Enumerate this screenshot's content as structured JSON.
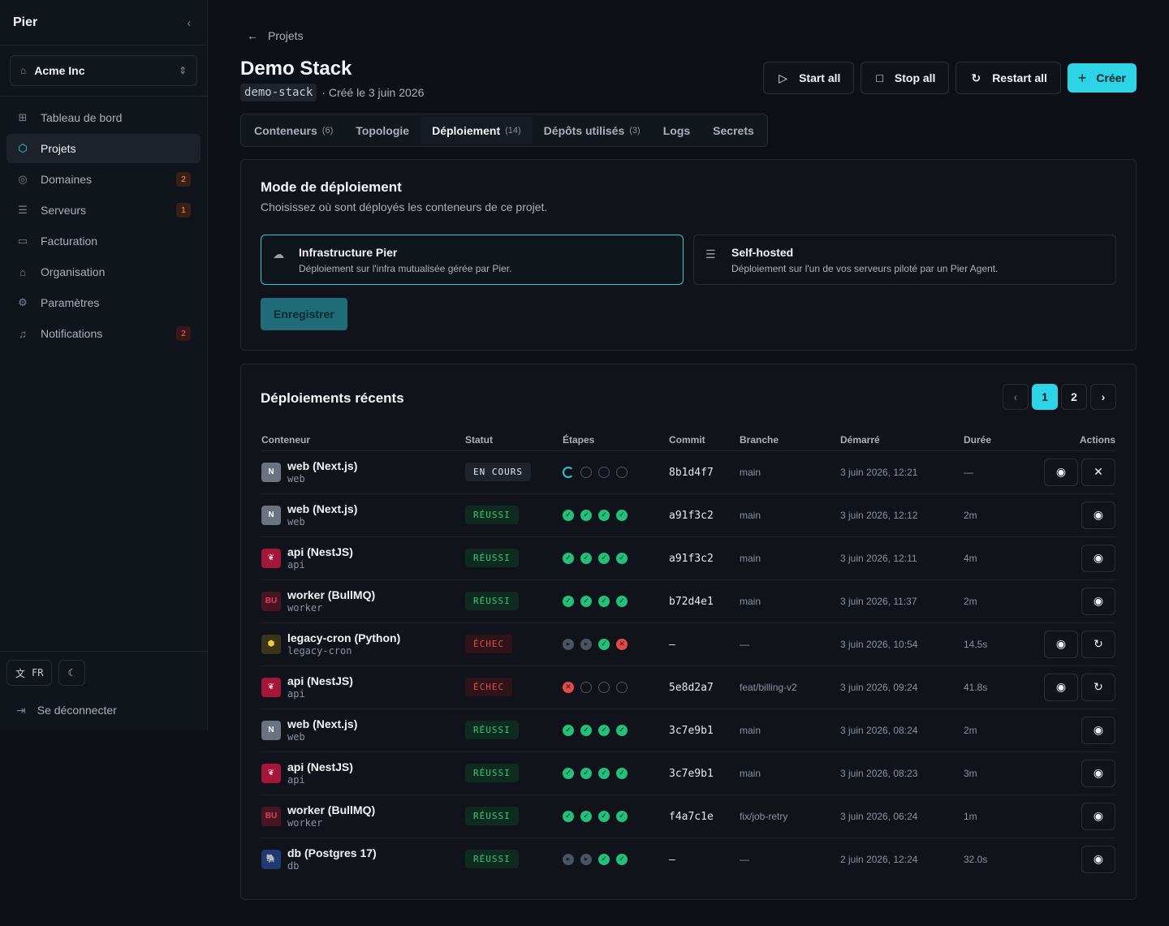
{
  "sidebar": {
    "logo": "Pier",
    "org": "Acme Inc",
    "items": [
      {
        "label": "Tableau de bord",
        "icon": "grid-icon",
        "glyph": "⊞",
        "badge": ""
      },
      {
        "label": "Projets",
        "icon": "cube-icon",
        "glyph": "⬡",
        "badge": "",
        "active": true
      },
      {
        "label": "Domaines",
        "icon": "globe-icon",
        "glyph": "◎",
        "badge": "2"
      },
      {
        "label": "Serveurs",
        "icon": "server-icon",
        "glyph": "☰",
        "badge": "1"
      },
      {
        "label": "Facturation",
        "icon": "card-icon",
        "glyph": "▭",
        "badge": ""
      },
      {
        "label": "Organisation",
        "icon": "building-icon",
        "glyph": "⌂",
        "badge": ""
      },
      {
        "label": "Paramètres",
        "icon": "gear-icon",
        "glyph": "⚙",
        "badge": ""
      },
      {
        "label": "Notifications",
        "icon": "bell-icon",
        "glyph": "♫",
        "badge": "2"
      }
    ],
    "lang": "FR",
    "logout": "Se déconnecter"
  },
  "header": {
    "breadcrumb": "Projets",
    "title": "Demo Stack",
    "slug": "demo-stack",
    "created": "· Créé le 3 juin 2026",
    "actions": [
      "Start all",
      "Stop all",
      "Restart all"
    ],
    "create": "Créer"
  },
  "tabs": [
    {
      "label": "Conteneurs",
      "count": "(6)"
    },
    {
      "label": "Topologie",
      "count": ""
    },
    {
      "label": "Déploiement",
      "count": "(14)",
      "active": true
    },
    {
      "label": "Dépôts utilisés",
      "count": "(3)"
    },
    {
      "label": "Logs",
      "count": ""
    },
    {
      "label": "Secrets",
      "count": ""
    }
  ],
  "mode": {
    "title": "Mode de déploiement",
    "subtitle": "Choisissez où sont déployés les conteneurs de ce projet.",
    "options": [
      {
        "title": "Infrastructure Pier",
        "desc": "Déploiement sur l'infra mutualisée gérée par Pier."
      },
      {
        "title": "Self-hosted",
        "desc": "Déploiement sur l'un de vos serveurs piloté par un Pier Agent."
      }
    ],
    "save": "Enregistrer"
  },
  "recent": {
    "title": "Déploiements récents",
    "pages": [
      "1",
      "2"
    ],
    "columns": [
      "Conteneur",
      "Statut",
      "Étapes",
      "Commit",
      "Branche",
      "Démarré",
      "Durée",
      "Actions"
    ],
    "rows": [
      {
        "name": "web (Next.js)",
        "slug": "web",
        "av": "next",
        "avText": "N",
        "status": "EN COURS",
        "st": "run",
        "steps": [
          "run",
          "pend",
          "pend",
          "pend"
        ],
        "commit": "8b1d4f7",
        "branch": "main",
        "started": "3 juin 2026, 12:21",
        "dur": "—",
        "acts": [
          "eye",
          "x"
        ]
      },
      {
        "name": "web (Next.js)",
        "slug": "web",
        "av": "next",
        "avText": "N",
        "status": "RÉUSSI",
        "st": "ok",
        "steps": [
          "ok",
          "ok",
          "ok",
          "ok"
        ],
        "commit": "a91f3c2",
        "branch": "main",
        "started": "3 juin 2026, 12:12",
        "dur": "2m",
        "acts": [
          "eye"
        ]
      },
      {
        "name": "api (NestJS)",
        "slug": "api",
        "av": "nest",
        "avText": "❦",
        "status": "RÉUSSI",
        "st": "ok",
        "steps": [
          "ok",
          "ok",
          "ok",
          "ok"
        ],
        "commit": "a91f3c2",
        "branch": "main",
        "started": "3 juin 2026, 12:11",
        "dur": "4m",
        "acts": [
          "eye"
        ]
      },
      {
        "name": "worker (BullMQ)",
        "slug": "worker",
        "av": "bull",
        "avText": "BU",
        "status": "RÉUSSI",
        "st": "ok",
        "steps": [
          "ok",
          "ok",
          "ok",
          "ok"
        ],
        "commit": "b72d4e1",
        "branch": "main",
        "started": "3 juin 2026, 11:37",
        "dur": "2m",
        "acts": [
          "eye"
        ]
      },
      {
        "name": "legacy-cron (Python)",
        "slug": "legacy-cron",
        "av": "py",
        "avText": "⬢",
        "status": "ÉCHEC",
        "st": "ko",
        "steps": [
          "skip",
          "skip",
          "ok",
          "ko"
        ],
        "commit": "–",
        "branch": "—",
        "started": "3 juin 2026, 10:54",
        "dur": "14.5s",
        "acts": [
          "eye",
          "retry"
        ]
      },
      {
        "name": "api (NestJS)",
        "slug": "api",
        "av": "nest",
        "avText": "❦",
        "status": "ÉCHEC",
        "st": "ko",
        "steps": [
          "ko",
          "pend",
          "pend",
          "pend"
        ],
        "commit": "5e8d2a7",
        "branch": "feat/billing-v2",
        "started": "3 juin 2026, 09:24",
        "dur": "41.8s",
        "acts": [
          "eye",
          "retry"
        ]
      },
      {
        "name": "web (Next.js)",
        "slug": "web",
        "av": "next",
        "avText": "N",
        "status": "RÉUSSI",
        "st": "ok",
        "steps": [
          "ok",
          "ok",
          "ok",
          "ok"
        ],
        "commit": "3c7e9b1",
        "branch": "main",
        "started": "3 juin 2026, 08:24",
        "dur": "2m",
        "acts": [
          "eye"
        ]
      },
      {
        "name": "api (NestJS)",
        "slug": "api",
        "av": "nest",
        "avText": "❦",
        "status": "RÉUSSI",
        "st": "ok",
        "steps": [
          "ok",
          "ok",
          "ok",
          "ok"
        ],
        "commit": "3c7e9b1",
        "branch": "main",
        "started": "3 juin 2026, 08:23",
        "dur": "3m",
        "acts": [
          "eye"
        ]
      },
      {
        "name": "worker (BullMQ)",
        "slug": "worker",
        "av": "bull",
        "avText": "BU",
        "status": "RÉUSSI",
        "st": "ok",
        "steps": [
          "ok",
          "ok",
          "ok",
          "ok"
        ],
        "commit": "f4a7c1e",
        "branch": "fix/job-retry",
        "started": "3 juin 2026, 06:24",
        "dur": "1m",
        "acts": [
          "eye"
        ]
      },
      {
        "name": "db (Postgres 17)",
        "slug": "db",
        "av": "pg",
        "avText": "🐘",
        "status": "RÉUSSI",
        "st": "ok",
        "steps": [
          "skip",
          "skip",
          "ok",
          "ok"
        ],
        "commit": "–",
        "branch": "—",
        "started": "2 juin 2026, 12:24",
        "dur": "32.0s",
        "acts": [
          "eye"
        ]
      }
    ]
  },
  "colors": {
    "accent": "#2dd4e6",
    "success": "#22c07a",
    "danger": "#e24a4a",
    "bg": "#0d1017"
  }
}
